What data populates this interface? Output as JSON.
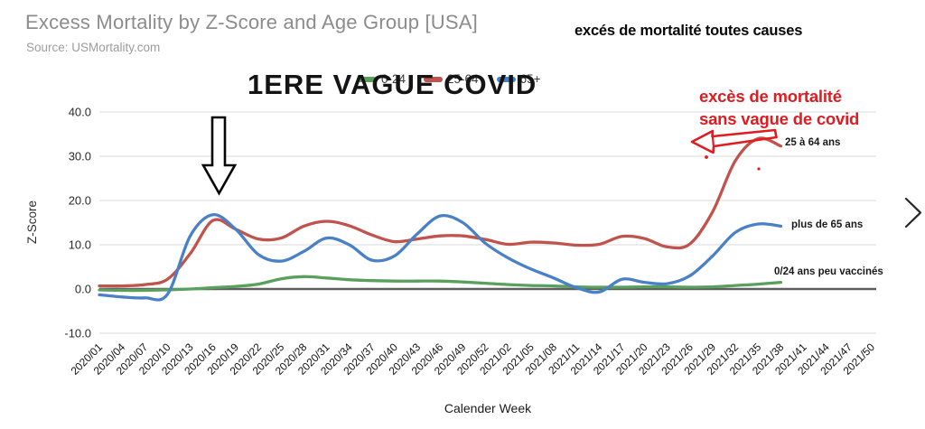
{
  "header": {
    "title": "Excess Mortality by Z-Score and Age Group [USA]",
    "source": "Source: USMortality.com"
  },
  "annotations": {
    "all_causes": "excés de mortalité toutes causes",
    "first_wave": "1ERE VAGUE COVID",
    "no_covid_wave_line1": "excès de mortalité",
    "no_covid_wave_line2": "sans vague de covid",
    "label_25_64": "25 à 64 ans",
    "label_65plus": "plus de 65 ans",
    "label_0_24": "0/24 ans peu vaccinés",
    "accent_red": "#e11b20"
  },
  "icons": {
    "down_arrow": "⇩ black outlined arrow pointing at first wave peak",
    "red_sketch_arrow": "⇦ hand-drawn red arrow pointing left",
    "next_chevron": "›"
  },
  "chart_data": {
    "type": "line",
    "title": "",
    "xlabel": "Calender Week",
    "ylabel": "Z-Score",
    "ylim": [
      -10,
      40
    ],
    "y_ticks": [
      40,
      30,
      20,
      10,
      0,
      -10
    ],
    "grid": true,
    "legend_position": "top-center",
    "categories": [
      "2020/01",
      "2020/04",
      "2020/07",
      "2020/10",
      "2020/13",
      "2020/16",
      "2020/19",
      "2020/22",
      "2020/25",
      "2020/28",
      "2020/31",
      "2020/34",
      "2020/37",
      "2020/40",
      "2020/43",
      "2020/46",
      "2020/49",
      "2020/52",
      "2021/02",
      "2021/05",
      "2021/08",
      "2021/11",
      "2021/14",
      "2021/17",
      "2021/20",
      "2021/23",
      "2021/26",
      "2021/29",
      "2021/32",
      "2021/35",
      "2021/38",
      "2021/41",
      "2021/44",
      "2021/47",
      "2021/50"
    ],
    "series": [
      {
        "name": "0-24",
        "color": "#58a05c",
        "values": [
          -0.2,
          -0.3,
          -0.3,
          -0.2,
          0.0,
          0.3,
          0.6,
          1.1,
          2.3,
          2.8,
          2.5,
          2.1,
          1.9,
          1.8,
          1.8,
          1.8,
          1.6,
          1.3,
          1.0,
          0.8,
          0.7,
          0.5,
          0.4,
          0.4,
          0.5,
          0.5,
          0.4,
          0.5,
          0.8,
          1.1,
          1.5
        ]
      },
      {
        "name": "25-64",
        "color": "#c0544c",
        "values": [
          0.7,
          0.7,
          1.0,
          2.2,
          8.0,
          15.5,
          13.5,
          11.3,
          11.5,
          14.2,
          15.3,
          14.3,
          12.2,
          10.7,
          11.3,
          12.0,
          12.0,
          11.2,
          10.1,
          10.6,
          10.4,
          9.9,
          10.1,
          11.9,
          11.4,
          9.5,
          10.2,
          17.5,
          29.0,
          34.0,
          32.3
        ]
      },
      {
        "name": "65+",
        "color": "#4a80c6",
        "values": [
          -1.3,
          -1.8,
          -2.0,
          -1.2,
          12.0,
          16.8,
          13.5,
          7.8,
          6.3,
          8.5,
          11.5,
          10.0,
          6.5,
          7.5,
          12.5,
          16.5,
          15.0,
          10.3,
          7.0,
          4.5,
          2.5,
          0.3,
          -0.7,
          2.2,
          1.5,
          1.2,
          3.0,
          7.5,
          12.8,
          14.7,
          14.2
        ]
      }
    ],
    "grid_color": "#d9d9d9",
    "zero_line_color": "#5e5e5e"
  }
}
